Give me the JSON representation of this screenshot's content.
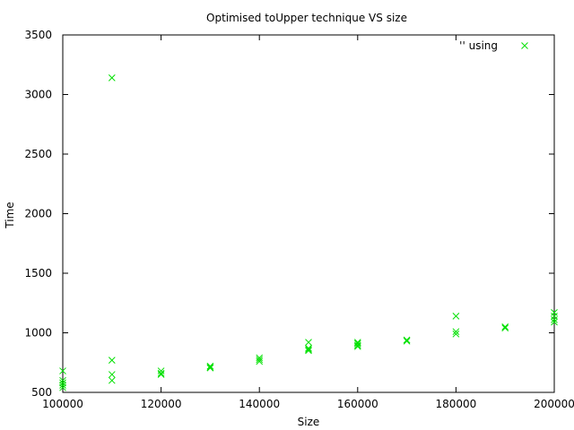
{
  "chart_data": {
    "type": "scatter",
    "title": "Optimised toUpper technique VS size",
    "xlabel": "Size",
    "ylabel": "Time",
    "xlim": [
      100000,
      200000
    ],
    "ylim": [
      500,
      3500
    ],
    "xticks": [
      "100000",
      "120000",
      "140000",
      "160000",
      "180000",
      "200000"
    ],
    "yticks": [
      "500",
      "1000",
      "1500",
      "2000",
      "2500",
      "3000",
      "3500"
    ],
    "legend": {
      "label": "'' using",
      "position": "top-right"
    },
    "marker": "x",
    "color": "#00e000",
    "points": [
      [
        100000,
        680
      ],
      [
        100000,
        600
      ],
      [
        100000,
        580
      ],
      [
        100000,
        560
      ],
      [
        100000,
        540
      ],
      [
        110000,
        3140
      ],
      [
        110000,
        770
      ],
      [
        110000,
        650
      ],
      [
        110000,
        600
      ],
      [
        120000,
        680
      ],
      [
        120000,
        660
      ],
      [
        120000,
        650
      ],
      [
        130000,
        720
      ],
      [
        130000,
        710
      ],
      [
        130000,
        705
      ],
      [
        140000,
        790
      ],
      [
        140000,
        775
      ],
      [
        140000,
        760
      ],
      [
        150000,
        920
      ],
      [
        150000,
        870
      ],
      [
        150000,
        860
      ],
      [
        150000,
        850
      ],
      [
        160000,
        920
      ],
      [
        160000,
        910
      ],
      [
        160000,
        895
      ],
      [
        160000,
        885
      ],
      [
        170000,
        940
      ],
      [
        170000,
        930
      ],
      [
        180000,
        1140
      ],
      [
        180000,
        1010
      ],
      [
        180000,
        990
      ],
      [
        190000,
        1050
      ],
      [
        190000,
        1040
      ],
      [
        200000,
        1170
      ],
      [
        200000,
        1140
      ],
      [
        200000,
        1110
      ],
      [
        200000,
        1090
      ]
    ]
  }
}
